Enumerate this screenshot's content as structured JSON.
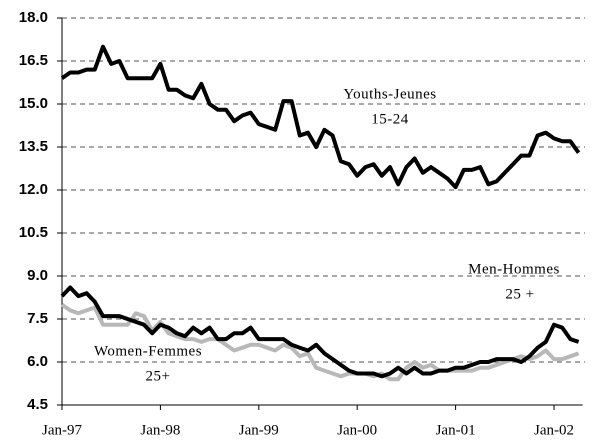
{
  "chart_data": {
    "type": "line",
    "categories": [
      "Jan-97",
      null,
      null,
      null,
      null,
      null,
      null,
      null,
      null,
      null,
      null,
      null,
      "Jan-98",
      null,
      null,
      null,
      null,
      null,
      null,
      null,
      null,
      null,
      null,
      null,
      "Jan-99",
      null,
      null,
      null,
      null,
      null,
      null,
      null,
      null,
      null,
      null,
      null,
      "Jan-00",
      null,
      null,
      null,
      null,
      null,
      null,
      null,
      null,
      null,
      null,
      null,
      "Jan-01",
      null,
      null,
      null,
      null,
      null,
      null,
      null,
      null,
      null,
      null,
      null,
      "Jan-02",
      null,
      null,
      null
    ],
    "series": [
      {
        "name": "Youths-Jeunes 15-24",
        "color": "#000000",
        "values": [
          15.9,
          16.1,
          16.1,
          16.2,
          16.2,
          17.0,
          16.4,
          16.5,
          15.9,
          15.9,
          15.9,
          15.9,
          16.4,
          15.5,
          15.5,
          15.3,
          15.2,
          15.7,
          15.0,
          14.8,
          14.8,
          14.4,
          14.6,
          14.7,
          14.3,
          14.2,
          14.1,
          15.1,
          15.1,
          13.9,
          14.0,
          13.5,
          14.1,
          13.9,
          13.0,
          12.9,
          12.5,
          12.8,
          12.9,
          12.5,
          12.8,
          12.2,
          12.8,
          13.1,
          12.6,
          12.8,
          12.6,
          12.4,
          12.1,
          12.7,
          12.7,
          12.8,
          12.2,
          12.3,
          12.6,
          12.9,
          13.2,
          13.2,
          13.9,
          14.0,
          13.8,
          13.7,
          13.7,
          13.3
        ]
      },
      {
        "name": "Men-Hommes 25 +",
        "color": "#000000",
        "values": [
          8.3,
          8.6,
          8.3,
          8.4,
          8.1,
          7.6,
          7.6,
          7.6,
          7.5,
          7.4,
          7.3,
          7.0,
          7.3,
          7.2,
          7.0,
          6.9,
          7.2,
          7.0,
          7.2,
          6.8,
          6.8,
          7.0,
          7.0,
          7.2,
          6.8,
          6.8,
          6.8,
          6.8,
          6.6,
          6.5,
          6.4,
          6.6,
          6.3,
          6.1,
          5.9,
          5.7,
          5.6,
          5.6,
          5.6,
          5.5,
          5.6,
          5.8,
          5.6,
          5.8,
          5.6,
          5.6,
          5.7,
          5.7,
          5.8,
          5.8,
          5.9,
          6.0,
          6.0,
          6.1,
          6.1,
          6.1,
          6.0,
          6.2,
          6.5,
          6.7,
          7.3,
          7.2,
          6.8,
          6.7
        ]
      },
      {
        "name": "Women-Femmes 25+",
        "color": "#b8b8b8",
        "values": [
          8.0,
          7.8,
          7.7,
          7.8,
          7.9,
          7.3,
          7.3,
          7.3,
          7.3,
          7.7,
          7.6,
          7.1,
          7.4,
          7.0,
          6.9,
          6.8,
          6.8,
          6.7,
          6.8,
          6.8,
          6.6,
          6.4,
          6.5,
          6.6,
          6.6,
          6.5,
          6.4,
          6.6,
          6.5,
          6.2,
          6.3,
          5.8,
          5.7,
          5.6,
          5.5,
          5.6,
          5.6,
          5.6,
          5.5,
          5.6,
          5.4,
          5.4,
          5.8,
          6.0,
          5.8,
          5.9,
          5.7,
          5.7,
          5.7,
          5.7,
          5.7,
          5.8,
          5.8,
          5.9,
          6.0,
          6.1,
          6.2,
          6.1,
          6.2,
          6.4,
          6.1,
          6.1,
          6.2,
          6.3
        ]
      }
    ],
    "annotations": [
      [
        "Youths-Jeunes",
        "15-24"
      ],
      [
        "Men-Hommes",
        "25 +"
      ],
      [
        "Women-Femmes",
        "25+"
      ]
    ],
    "ylim": [
      4.5,
      18.0
    ],
    "yticks": [
      4.5,
      {
        "value": 6.0,
        "label": "6.0"
      },
      7.5,
      {
        "value": 9.0,
        "label": "9.0"
      },
      10.5,
      {
        "value": 12.0,
        "label": "12.0"
      },
      13.5,
      {
        "value": 15.0,
        "label": "15.0"
      },
      16.5,
      {
        "value": 18.0,
        "label": "18.0"
      }
    ],
    "grid": true
  }
}
